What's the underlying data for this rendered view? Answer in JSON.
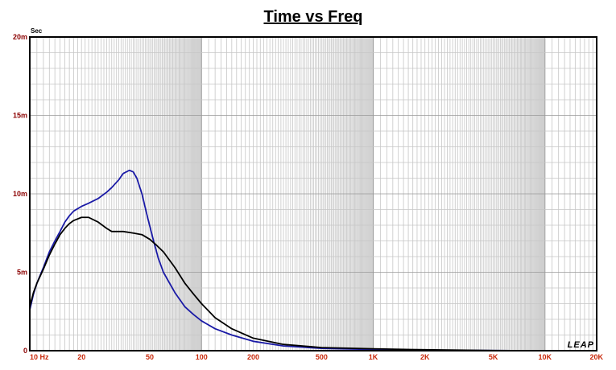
{
  "chart_data": {
    "type": "line",
    "title": "Time vs Freq",
    "ylabel": "Sec",
    "xscale": "log",
    "xlim": [
      10,
      20000
    ],
    "ylim": [
      0,
      0.02
    ],
    "grid": true,
    "x_ticks": [
      {
        "value": 10,
        "label": "10 Hz"
      },
      {
        "value": 20,
        "label": "20"
      },
      {
        "value": 50,
        "label": "50"
      },
      {
        "value": 100,
        "label": "100"
      },
      {
        "value": 200,
        "label": "200"
      },
      {
        "value": 500,
        "label": "500"
      },
      {
        "value": 1000,
        "label": "1K"
      },
      {
        "value": 2000,
        "label": "2K"
      },
      {
        "value": 5000,
        "label": "5K"
      },
      {
        "value": 10000,
        "label": "10K"
      },
      {
        "value": 20000,
        "label": "20K"
      }
    ],
    "y_ticks": [
      {
        "value": 0,
        "label": "0"
      },
      {
        "value": 0.005,
        "label": "5m"
      },
      {
        "value": 0.01,
        "label": "10m"
      },
      {
        "value": 0.015,
        "label": "15m"
      },
      {
        "value": 0.02,
        "label": "20m"
      }
    ],
    "series": [
      {
        "color": "#1a1aa6",
        "points": [
          [
            10,
            0.0026
          ],
          [
            10.5,
            0.0036
          ],
          [
            11,
            0.0043
          ],
          [
            12,
            0.0053
          ],
          [
            13,
            0.0063
          ],
          [
            14,
            0.007
          ],
          [
            15,
            0.0076
          ],
          [
            16,
            0.0082
          ],
          [
            17,
            0.0086
          ],
          [
            18,
            0.0089
          ],
          [
            20,
            0.0092
          ],
          [
            22,
            0.0094
          ],
          [
            25,
            0.0097
          ],
          [
            28,
            0.0101
          ],
          [
            30,
            0.0104
          ],
          [
            33,
            0.0109
          ],
          [
            35,
            0.0113
          ],
          [
            38,
            0.0115
          ],
          [
            40,
            0.0114
          ],
          [
            42,
            0.011
          ],
          [
            45,
            0.01
          ],
          [
            48,
            0.0087
          ],
          [
            52,
            0.0072
          ],
          [
            56,
            0.0059
          ],
          [
            60,
            0.005
          ],
          [
            70,
            0.0037
          ],
          [
            80,
            0.0028
          ],
          [
            90,
            0.0023
          ],
          [
            100,
            0.0019
          ],
          [
            120,
            0.0014
          ],
          [
            150,
            0.001
          ],
          [
            200,
            0.0006
          ],
          [
            300,
            0.0003
          ],
          [
            500,
            0.00015
          ],
          [
            1000,
            8e-05
          ],
          [
            2000,
            4e-05
          ],
          [
            5000,
            1e-05
          ],
          [
            10000,
            0.0
          ]
        ]
      },
      {
        "color": "#000000",
        "points": [
          [
            10,
            0.0028
          ],
          [
            10.5,
            0.0037
          ],
          [
            11,
            0.0043
          ],
          [
            12,
            0.0052
          ],
          [
            13,
            0.0061
          ],
          [
            14,
            0.0068
          ],
          [
            15,
            0.0074
          ],
          [
            16,
            0.0078
          ],
          [
            17,
            0.0081
          ],
          [
            18,
            0.0083
          ],
          [
            20,
            0.0085
          ],
          [
            22,
            0.0085
          ],
          [
            25,
            0.0082
          ],
          [
            28,
            0.0078
          ],
          [
            30,
            0.0076
          ],
          [
            35,
            0.0076
          ],
          [
            40,
            0.0075
          ],
          [
            45,
            0.0074
          ],
          [
            50,
            0.0071
          ],
          [
            55,
            0.0067
          ],
          [
            60,
            0.0063
          ],
          [
            70,
            0.0053
          ],
          [
            80,
            0.0043
          ],
          [
            90,
            0.0036
          ],
          [
            100,
            0.003
          ],
          [
            120,
            0.0021
          ],
          [
            150,
            0.0014
          ],
          [
            200,
            0.0008
          ],
          [
            300,
            0.0004
          ],
          [
            500,
            0.0002
          ],
          [
            1000,
            0.00012
          ],
          [
            2000,
            6e-05
          ],
          [
            5000,
            1e-05
          ],
          [
            10000,
            0.0
          ]
        ]
      }
    ]
  },
  "logo": "LEAP"
}
